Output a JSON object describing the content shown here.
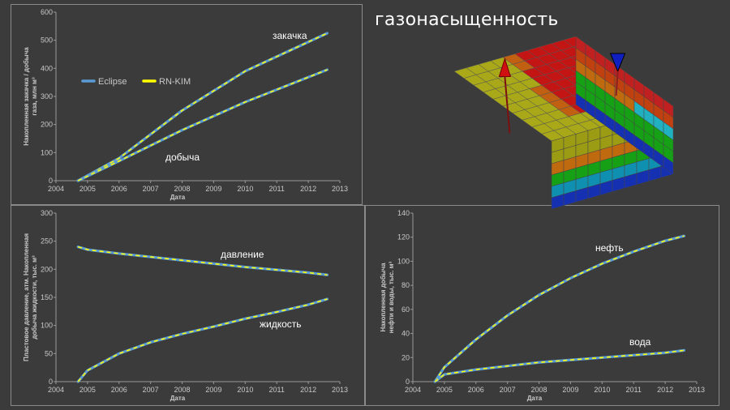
{
  "title_3d": "газонасыщенность",
  "legend": {
    "eclipse": "Eclipse",
    "rnkim": "RN-KIM"
  },
  "colors": {
    "eclipse": "#5b9bd5",
    "rnkim": "#ffff00",
    "bg": "#3b3b3b"
  },
  "chart_data": [
    {
      "type": "line",
      "xlabel": "Дата",
      "ylabel_lines": [
        "Накопленная закачка / добыча",
        "газа, млн м³"
      ],
      "xlim": [
        2004,
        2013
      ],
      "ylim": [
        0,
        600
      ],
      "xticks": [
        2004,
        2005,
        2006,
        2007,
        2008,
        2009,
        2010,
        2011,
        2012,
        2013
      ],
      "xtick_labels": [
        "2004",
        "2005",
        "2006",
        "2007",
        "2008",
        "2009",
        "2010",
        "2011",
        "2012",
        "2013"
      ],
      "yticks": [
        0,
        100,
        200,
        300,
        400,
        500,
        600
      ],
      "ytick_labels": [
        "0",
        "100",
        "200",
        "300",
        "400",
        "500",
        "600"
      ],
      "series": [
        {
          "label": "закачка",
          "x": [
            2004.7,
            2006,
            2008,
            2010,
            2012.6
          ],
          "y": [
            0,
            80,
            250,
            390,
            525
          ]
        },
        {
          "label": "добыча",
          "x": [
            2004.7,
            2006,
            2008,
            2010,
            2012.6
          ],
          "y": [
            0,
            70,
            180,
            280,
            395
          ]
        }
      ]
    },
    {
      "type": "line",
      "xlabel": "Дата",
      "ylabel_lines": [
        "Пластовое давление, атм. Накопленная",
        "добыча жидкости, тыс. м³"
      ],
      "xlim": [
        2004,
        2013
      ],
      "ylim": [
        0,
        300
      ],
      "xticks": [
        2004,
        2005,
        2006,
        2007,
        2008,
        2009,
        2010,
        2011,
        2012,
        2013
      ],
      "xtick_labels": [
        "2004",
        "2005",
        "2006",
        "2007",
        "2008",
        "2009",
        "2010",
        "2011",
        "2012",
        "2013"
      ],
      "yticks": [
        0,
        50,
        100,
        150,
        200,
        250,
        300
      ],
      "ytick_labels": [
        "0",
        "50",
        "100",
        "150",
        "200",
        "250",
        "300"
      ],
      "series": [
        {
          "label": "давление",
          "x": [
            2004.7,
            2005,
            2006,
            2007,
            2008,
            2009,
            2010,
            2011,
            2012,
            2012.6
          ],
          "y": [
            240,
            235,
            228,
            222,
            216,
            210,
            204,
            199,
            194,
            190
          ]
        },
        {
          "label": "жидкость",
          "x": [
            2004.7,
            2005,
            2006,
            2007,
            2008,
            2009,
            2010,
            2011,
            2012,
            2012.6
          ],
          "y": [
            0,
            20,
            50,
            70,
            85,
            98,
            112,
            124,
            137,
            147
          ]
        }
      ]
    },
    {
      "type": "line",
      "xlabel": "Дата",
      "ylabel_lines": [
        "Накопленная добыча",
        "нефти и воды, тыс. м³"
      ],
      "xlim": [
        2004,
        2013
      ],
      "ylim": [
        0,
        140
      ],
      "xticks": [
        2004,
        2005,
        2006,
        2007,
        2008,
        2009,
        2010,
        2011,
        2012,
        2013
      ],
      "xtick_labels": [
        "2004",
        "2005",
        "2006",
        "2007",
        "2008",
        "2009",
        "2010",
        "2011",
        "2012",
        "2013"
      ],
      "yticks": [
        0,
        20,
        40,
        60,
        80,
        100,
        120,
        140
      ],
      "ytick_labels": [
        "0",
        "20",
        "40",
        "60",
        "80",
        "100",
        "120",
        "140"
      ],
      "series": [
        {
          "label": "нефть",
          "x": [
            2004.7,
            2005,
            2006,
            2007,
            2008,
            2009,
            2010,
            2011,
            2012,
            2012.6
          ],
          "y": [
            0,
            12,
            35,
            55,
            72,
            86,
            98,
            108,
            117,
            121
          ]
        },
        {
          "label": "вода",
          "x": [
            2004.7,
            2005,
            2006,
            2007,
            2008,
            2009,
            2010,
            2011,
            2012,
            2012.6
          ],
          "y": [
            0,
            6,
            10,
            13,
            16,
            18,
            20,
            22,
            24,
            26
          ]
        }
      ]
    }
  ]
}
